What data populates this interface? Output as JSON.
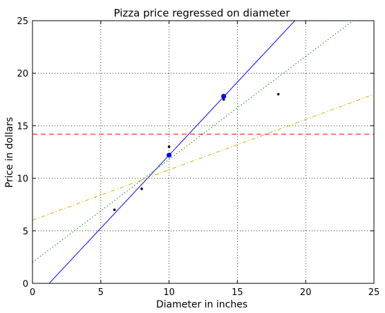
{
  "chart_data": {
    "type": "scatter",
    "title": "Pizza price regressed on diameter",
    "xlabel": "Diameter in inches",
    "ylabel": "Price in dollars",
    "xlim": [
      0,
      25
    ],
    "ylim": [
      0,
      25
    ],
    "xticks": [
      0,
      5,
      10,
      15,
      20,
      25
    ],
    "yticks": [
      0,
      5,
      10,
      15,
      20,
      25
    ],
    "grid": true,
    "grid_style": "dotted",
    "legend": "none",
    "series": [
      {
        "kind": "points",
        "color": "#000000",
        "points": [
          [
            6,
            7
          ],
          [
            8,
            9
          ],
          [
            10,
            13
          ],
          [
            14,
            17.5
          ],
          [
            18,
            18
          ]
        ]
      },
      {
        "kind": "points-highlight",
        "color": "#0000ff",
        "points": [
          [
            10,
            12.2
          ],
          [
            14,
            17.8
          ]
        ]
      },
      {
        "kind": "line",
        "style": "solid",
        "color": "#0000ff",
        "slope": 1.39,
        "intercept": -1.7
      },
      {
        "kind": "line",
        "style": "dotted",
        "color": "#008000",
        "slope": 0.98,
        "intercept": 2.0
      },
      {
        "kind": "line",
        "style": "dashdot",
        "color": "#c8b400",
        "slope": 0.48,
        "intercept": 6.0
      },
      {
        "kind": "hline",
        "style": "dashed",
        "color": "#ff0000",
        "y": 14.2
      }
    ]
  }
}
